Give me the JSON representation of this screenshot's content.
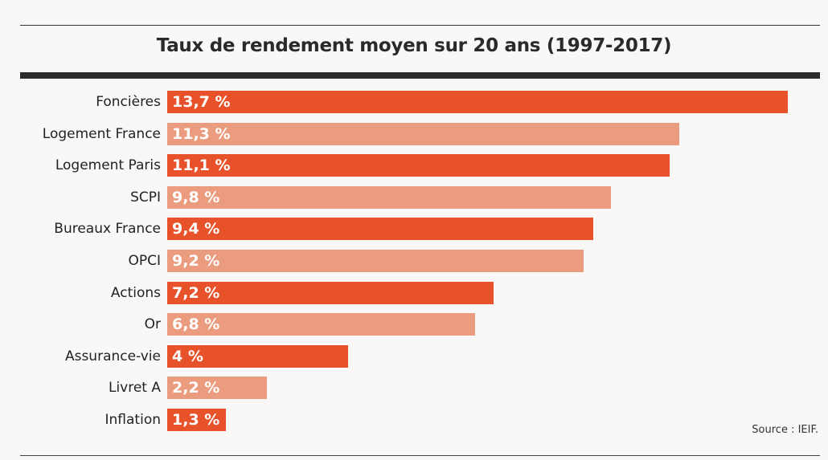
{
  "chart_data": {
    "type": "bar",
    "orientation": "horizontal",
    "title": "Taux de rendement moyen sur 20 ans (1997-2017)",
    "categories": [
      "Foncières",
      "Logement France",
      "Logement Paris",
      "SCPI",
      "Bureaux France",
      "OPCI",
      "Actions",
      "Or",
      "Assurance-vie",
      "Livret A",
      "Inflation"
    ],
    "values": [
      13.7,
      11.3,
      11.1,
      9.8,
      9.4,
      9.2,
      7.2,
      6.8,
      4,
      2.2,
      1.3
    ],
    "value_labels": [
      "13,7 %",
      "11,3 %",
      "11,1 %",
      "9,8 %",
      "9,4 %",
      "9,2 %",
      "7,2 %",
      "6,8 %",
      "4 %",
      "2,2 %",
      "1,3 %"
    ],
    "unit": "%",
    "xlim": [
      0,
      13.7
    ],
    "grid": false,
    "colors": {
      "dark": "#e8522b",
      "light": "#eb9b7e"
    },
    "source": "Source : IEIF."
  }
}
